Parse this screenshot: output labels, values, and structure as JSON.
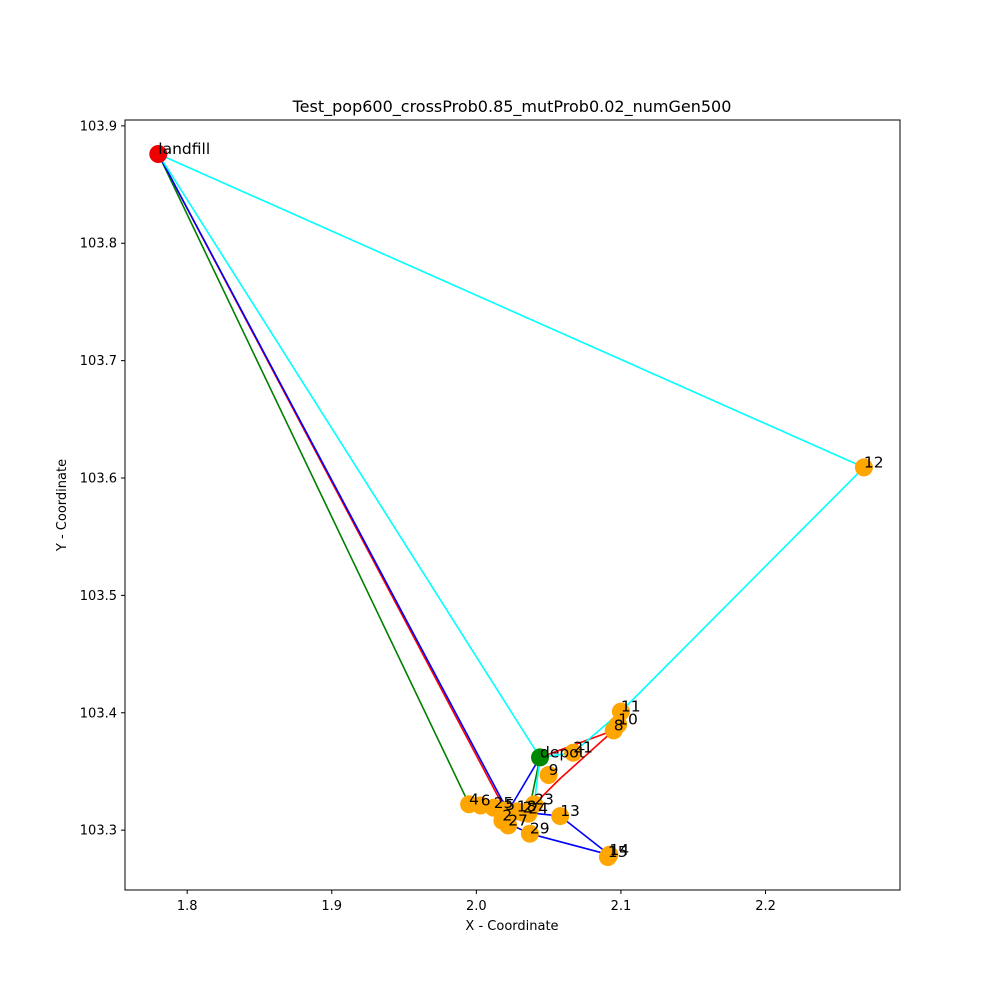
{
  "chart_data": {
    "type": "scatter",
    "title": "Test_pop600_crossProb0.85_mutProb0.02_numGen500",
    "xlabel": "X - Coordinate",
    "ylabel": "Y - Coordinate",
    "xlim": [
      1.757,
      2.293
    ],
    "ylim": [
      103.249,
      103.905
    ],
    "xticks": [
      1.8,
      1.9,
      2.0,
      2.1,
      2.2
    ],
    "xtick_labels": [
      "1.8",
      "1.9",
      "2.0",
      "2.1",
      "2.2"
    ],
    "yticks": [
      103.3,
      103.4,
      103.5,
      103.6,
      103.7,
      103.8,
      103.9
    ],
    "ytick_labels": [
      "103.3",
      "103.4",
      "103.5",
      "103.6",
      "103.7",
      "103.8",
      "103.9"
    ],
    "grid": false,
    "colors": {
      "landfill": "#ee0000",
      "depot": "#008800",
      "customer": "#ffa500",
      "route_red": "#ff0000",
      "route_green": "#008000",
      "route_blue": "#0000ff",
      "route_cyan": "#00ffff"
    },
    "points": [
      {
        "label": "landfill",
        "x": 1.78,
        "y": 103.876,
        "kind": "landfill"
      },
      {
        "label": "depot",
        "x": 2.044,
        "y": 103.362,
        "kind": "depot"
      },
      {
        "label": "12",
        "x": 2.268,
        "y": 103.609,
        "kind": "customer"
      },
      {
        "label": "11",
        "x": 2.1,
        "y": 103.401,
        "kind": "customer"
      },
      {
        "label": "10",
        "x": 2.098,
        "y": 103.39,
        "kind": "customer"
      },
      {
        "label": "8",
        "x": 2.095,
        "y": 103.385,
        "kind": "customer"
      },
      {
        "label": "21",
        "x": 2.067,
        "y": 103.366,
        "kind": "customer"
      },
      {
        "label": "9",
        "x": 2.05,
        "y": 103.347,
        "kind": "customer"
      },
      {
        "label": "13",
        "x": 2.058,
        "y": 103.312,
        "kind": "customer"
      },
      {
        "label": "23",
        "x": 2.04,
        "y": 103.322,
        "kind": "customer"
      },
      {
        "label": "4",
        "x": 1.995,
        "y": 103.322,
        "kind": "customer"
      },
      {
        "label": "6",
        "x": 2.003,
        "y": 103.321,
        "kind": "customer"
      },
      {
        "label": "25",
        "x": 2.012,
        "y": 103.319,
        "kind": "customer"
      },
      {
        "label": "5",
        "x": 2.02,
        "y": 103.317,
        "kind": "customer"
      },
      {
        "label": "18",
        "x": 2.028,
        "y": 103.316,
        "kind": "customer"
      },
      {
        "label": "2",
        "x": 2.032,
        "y": 103.315,
        "kind": "customer"
      },
      {
        "label": "24",
        "x": 2.036,
        "y": 103.314,
        "kind": "customer"
      },
      {
        "label": "2",
        "x": 2.018,
        "y": 103.308,
        "kind": "customer"
      },
      {
        "label": "27",
        "x": 2.022,
        "y": 103.304,
        "kind": "customer"
      },
      {
        "label": "29",
        "x": 2.037,
        "y": 103.297,
        "kind": "customer"
      },
      {
        "label": "14",
        "x": 2.092,
        "y": 103.279,
        "kind": "customer"
      },
      {
        "label": "15",
        "x": 2.091,
        "y": 103.277,
        "kind": "customer"
      }
    ],
    "series": [
      {
        "color": "#ff0000",
        "path": [
          [
            2.044,
            103.362
          ],
          [
            2.095,
            103.385
          ],
          [
            2.058,
            103.344
          ],
          [
            2.04,
            103.322
          ],
          [
            2.02,
            103.317
          ],
          [
            1.78,
            103.876
          ]
        ]
      },
      {
        "color": "#008000",
        "path": [
          [
            2.044,
            103.362
          ],
          [
            2.036,
            103.314
          ],
          [
            2.012,
            103.319
          ],
          [
            1.995,
            103.322
          ],
          [
            1.78,
            103.876
          ]
        ]
      },
      {
        "color": "#0000ff",
        "path": [
          [
            2.044,
            103.362
          ],
          [
            2.018,
            103.308
          ],
          [
            2.037,
            103.297
          ],
          [
            2.092,
            103.279
          ],
          [
            2.058,
            103.312
          ],
          [
            2.028,
            103.316
          ],
          [
            2.018,
            103.325
          ],
          [
            1.78,
            103.876
          ]
        ]
      },
      {
        "color": "#00ffff",
        "path": [
          [
            2.044,
            103.362
          ],
          [
            2.067,
            103.366
          ],
          [
            2.1,
            103.401
          ],
          [
            2.268,
            103.609
          ],
          [
            1.78,
            103.876
          ],
          [
            2.044,
            103.362
          ],
          [
            2.04,
            103.322
          ],
          [
            2.022,
            103.304
          ]
        ]
      }
    ]
  }
}
